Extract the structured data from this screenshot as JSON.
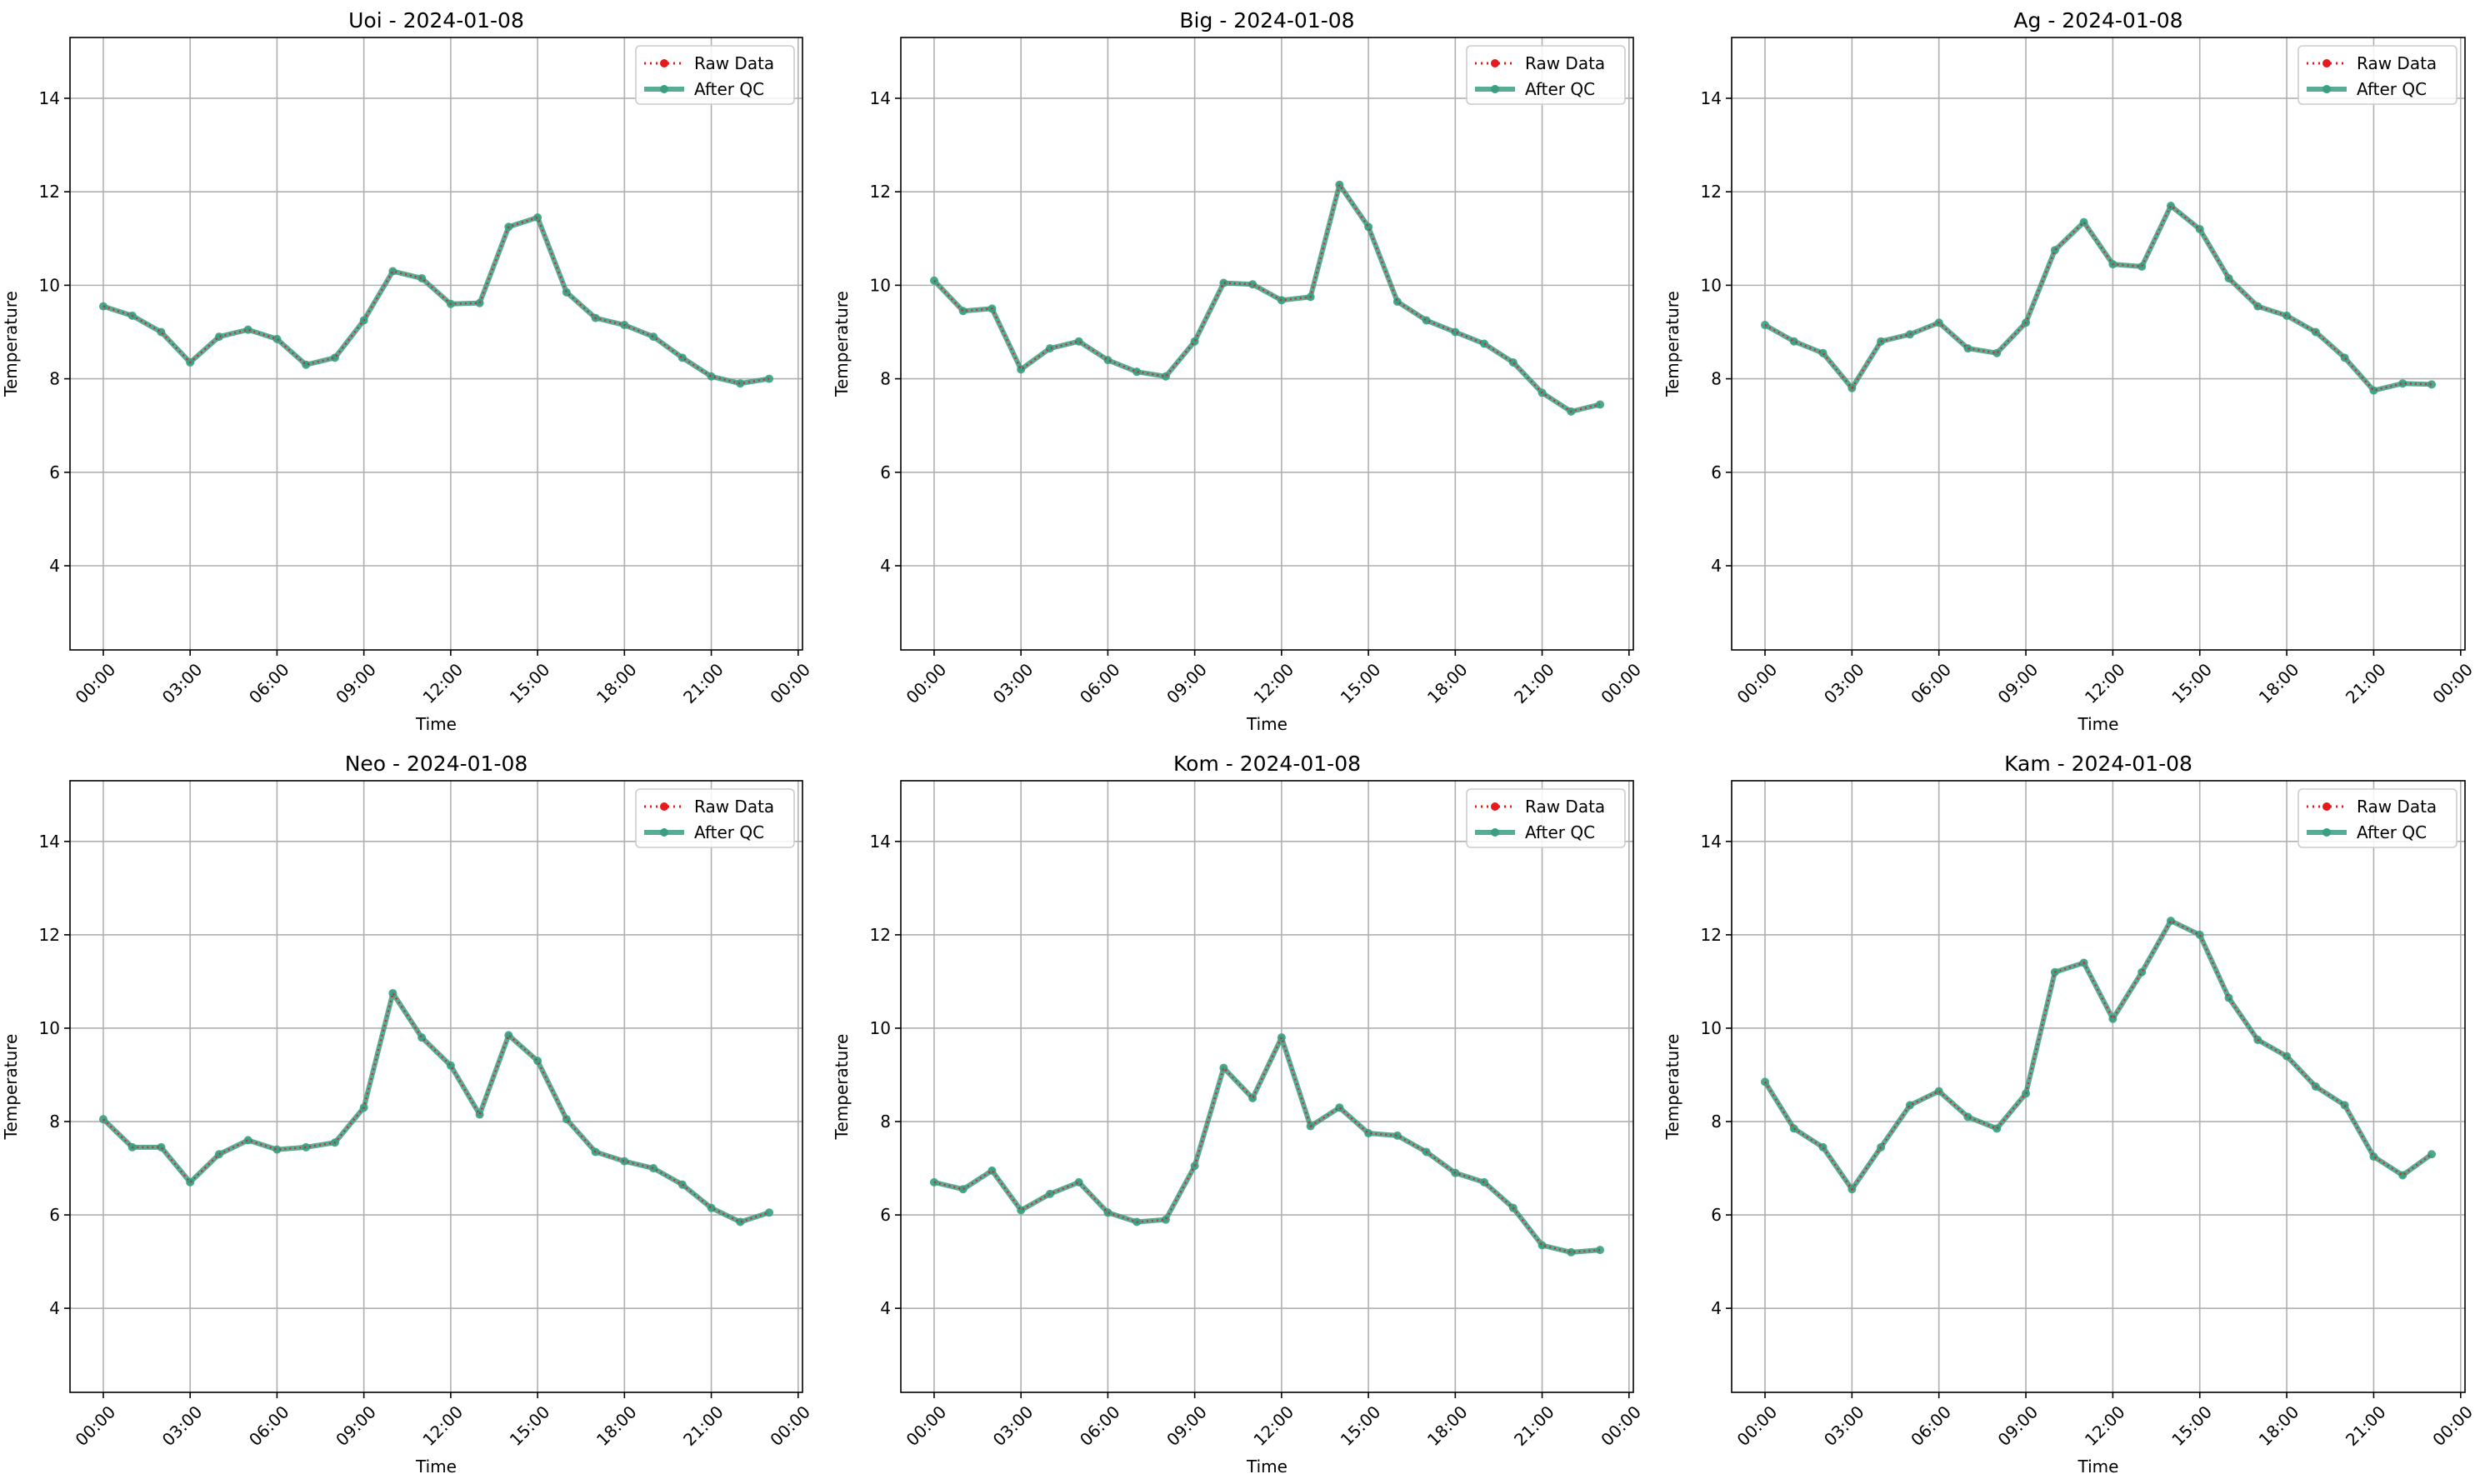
{
  "chart_data": [
    {
      "type": "line",
      "title": "Uoi - 2024-01-08",
      "xlabel": "Time",
      "ylabel": "Temperature",
      "ylim": [
        2.2,
        15.3
      ],
      "yticks": [
        4,
        6,
        8,
        10,
        12,
        14
      ],
      "xticks": [
        "00:00",
        "03:00",
        "06:00",
        "09:00",
        "12:00",
        "15:00",
        "18:00",
        "21:00",
        "00:00"
      ],
      "grid": true,
      "legend_position": "top-right",
      "x_hours": [
        0,
        1,
        2,
        3,
        4,
        5,
        6,
        7,
        8,
        9,
        10,
        11,
        12,
        13,
        14,
        15,
        16,
        17,
        18,
        19,
        20,
        21,
        22,
        23
      ],
      "series": [
        {
          "name": "Raw Data",
          "color": "#e41a1c",
          "style": "dotted",
          "values": [
            9.55,
            9.35,
            9.0,
            8.35,
            8.9,
            9.05,
            8.85,
            8.3,
            8.45,
            9.25,
            10.3,
            10.15,
            9.6,
            9.62,
            11.25,
            11.45,
            9.85,
            9.3,
            9.15,
            8.9,
            8.45,
            8.05,
            7.9,
            8.0
          ]
        },
        {
          "name": "After QC",
          "color": "#3a9e82",
          "style": "solid",
          "values": [
            9.55,
            9.35,
            9.0,
            8.35,
            8.9,
            9.05,
            8.85,
            8.3,
            8.45,
            9.25,
            10.3,
            10.15,
            9.6,
            9.62,
            11.25,
            11.45,
            9.85,
            9.3,
            9.15,
            8.9,
            8.45,
            8.05,
            7.9,
            8.0
          ]
        }
      ]
    },
    {
      "type": "line",
      "title": "Big - 2024-01-08",
      "xlabel": "Time",
      "ylabel": "Temperature",
      "ylim": [
        2.2,
        15.3
      ],
      "yticks": [
        4,
        6,
        8,
        10,
        12,
        14
      ],
      "xticks": [
        "00:00",
        "03:00",
        "06:00",
        "09:00",
        "12:00",
        "15:00",
        "18:00",
        "21:00",
        "00:00"
      ],
      "grid": true,
      "legend_position": "top-right",
      "x_hours": [
        0,
        1,
        2,
        3,
        4,
        5,
        6,
        7,
        8,
        9,
        10,
        11,
        12,
        13,
        14,
        15,
        16,
        17,
        18,
        19,
        20,
        21,
        22,
        23
      ],
      "series": [
        {
          "name": "Raw Data",
          "color": "#e41a1c",
          "style": "dotted",
          "values": [
            10.1,
            9.45,
            9.5,
            8.2,
            8.65,
            8.8,
            8.4,
            8.15,
            8.05,
            8.8,
            10.05,
            10.02,
            9.68,
            9.75,
            12.15,
            11.25,
            9.65,
            9.25,
            9.0,
            8.75,
            8.35,
            7.7,
            7.3,
            7.45
          ]
        },
        {
          "name": "After QC",
          "color": "#3a9e82",
          "style": "solid",
          "values": [
            10.1,
            9.45,
            9.5,
            8.2,
            8.65,
            8.8,
            8.4,
            8.15,
            8.05,
            8.8,
            10.05,
            10.02,
            9.68,
            9.75,
            12.15,
            11.25,
            9.65,
            9.25,
            9.0,
            8.75,
            8.35,
            7.7,
            7.3,
            7.45
          ]
        }
      ]
    },
    {
      "type": "line",
      "title": "Ag - 2024-01-08",
      "xlabel": "Time",
      "ylabel": "Temperature",
      "ylim": [
        2.2,
        15.3
      ],
      "yticks": [
        4,
        6,
        8,
        10,
        12,
        14
      ],
      "xticks": [
        "00:00",
        "03:00",
        "06:00",
        "09:00",
        "12:00",
        "15:00",
        "18:00",
        "21:00",
        "00:00"
      ],
      "grid": true,
      "legend_position": "top-right",
      "x_hours": [
        0,
        1,
        2,
        3,
        4,
        5,
        6,
        7,
        8,
        9,
        10,
        11,
        12,
        13,
        14,
        15,
        16,
        17,
        18,
        19,
        20,
        21,
        22,
        23
      ],
      "series": [
        {
          "name": "Raw Data",
          "color": "#e41a1c",
          "style": "dotted",
          "values": [
            9.15,
            8.8,
            8.55,
            7.8,
            8.8,
            8.95,
            9.2,
            8.65,
            8.55,
            9.2,
            10.75,
            11.35,
            10.45,
            10.4,
            11.7,
            11.2,
            10.15,
            9.55,
            9.35,
            9.0,
            8.45,
            7.75,
            7.9,
            7.88
          ]
        },
        {
          "name": "After QC",
          "color": "#3a9e82",
          "style": "solid",
          "values": [
            9.15,
            8.8,
            8.55,
            7.8,
            8.8,
            8.95,
            9.2,
            8.65,
            8.55,
            9.2,
            10.75,
            11.35,
            10.45,
            10.4,
            11.7,
            11.2,
            10.15,
            9.55,
            9.35,
            9.0,
            8.45,
            7.75,
            7.9,
            7.88
          ]
        }
      ]
    },
    {
      "type": "line",
      "title": "Neo - 2024-01-08",
      "xlabel": "Time",
      "ylabel": "Temperature",
      "ylim": [
        2.2,
        15.3
      ],
      "yticks": [
        4,
        6,
        8,
        10,
        12,
        14
      ],
      "xticks": [
        "00:00",
        "03:00",
        "06:00",
        "09:00",
        "12:00",
        "15:00",
        "18:00",
        "21:00",
        "00:00"
      ],
      "grid": true,
      "legend_position": "top-right",
      "x_hours": [
        0,
        1,
        2,
        3,
        4,
        5,
        6,
        7,
        8,
        9,
        10,
        11,
        12,
        13,
        14,
        15,
        16,
        17,
        18,
        19,
        20,
        21,
        22,
        23
      ],
      "series": [
        {
          "name": "Raw Data",
          "color": "#e41a1c",
          "style": "dotted",
          "values": [
            8.05,
            7.45,
            7.45,
            6.7,
            7.3,
            7.6,
            7.4,
            7.45,
            7.55,
            8.3,
            10.75,
            9.8,
            9.2,
            8.15,
            9.85,
            9.3,
            8.05,
            7.35,
            7.15,
            7.0,
            6.65,
            6.15,
            5.85,
            6.05
          ]
        },
        {
          "name": "After QC",
          "color": "#3a9e82",
          "style": "solid",
          "values": [
            8.05,
            7.45,
            7.45,
            6.7,
            7.3,
            7.6,
            7.4,
            7.45,
            7.55,
            8.3,
            10.75,
            9.8,
            9.2,
            8.15,
            9.85,
            9.3,
            8.05,
            7.35,
            7.15,
            7.0,
            6.65,
            6.15,
            5.85,
            6.05
          ]
        }
      ]
    },
    {
      "type": "line",
      "title": "Kom - 2024-01-08",
      "xlabel": "Time",
      "ylabel": "Temperature",
      "ylim": [
        2.2,
        15.3
      ],
      "yticks": [
        4,
        6,
        8,
        10,
        12,
        14
      ],
      "xticks": [
        "00:00",
        "03:00",
        "06:00",
        "09:00",
        "12:00",
        "15:00",
        "18:00",
        "21:00",
        "00:00"
      ],
      "grid": true,
      "legend_position": "top-right",
      "x_hours": [
        0,
        1,
        2,
        3,
        4,
        5,
        6,
        7,
        8,
        9,
        10,
        11,
        12,
        13,
        14,
        15,
        16,
        17,
        18,
        19,
        20,
        21,
        22,
        23
      ],
      "series": [
        {
          "name": "Raw Data",
          "color": "#e41a1c",
          "style": "dotted",
          "values": [
            6.7,
            6.55,
            6.95,
            6.1,
            6.45,
            6.7,
            6.05,
            5.85,
            5.9,
            7.05,
            9.15,
            8.5,
            9.8,
            7.9,
            8.3,
            7.75,
            7.7,
            7.35,
            6.9,
            6.7,
            6.15,
            5.35,
            5.2,
            5.25
          ]
        },
        {
          "name": "After QC",
          "color": "#3a9e82",
          "style": "solid",
          "values": [
            6.7,
            6.55,
            6.95,
            6.1,
            6.45,
            6.7,
            6.05,
            5.85,
            5.9,
            7.05,
            9.15,
            8.5,
            9.8,
            7.9,
            8.3,
            7.75,
            7.7,
            7.35,
            6.9,
            6.7,
            6.15,
            5.35,
            5.2,
            5.25
          ]
        }
      ]
    },
    {
      "type": "line",
      "title": "Kam - 2024-01-08",
      "xlabel": "Time",
      "ylabel": "Temperature",
      "ylim": [
        2.2,
        15.3
      ],
      "yticks": [
        4,
        6,
        8,
        10,
        12,
        14
      ],
      "xticks": [
        "00:00",
        "03:00",
        "06:00",
        "09:00",
        "12:00",
        "15:00",
        "18:00",
        "21:00",
        "00:00"
      ],
      "grid": true,
      "legend_position": "top-right",
      "x_hours": [
        0,
        1,
        2,
        3,
        4,
        5,
        6,
        7,
        8,
        9,
        10,
        11,
        12,
        13,
        14,
        15,
        16,
        17,
        18,
        19,
        20,
        21,
        22,
        23
      ],
      "series": [
        {
          "name": "Raw Data",
          "color": "#e41a1c",
          "style": "dotted",
          "values": [
            8.85,
            7.85,
            7.45,
            6.55,
            7.45,
            8.35,
            8.65,
            8.1,
            7.85,
            8.6,
            11.2,
            11.4,
            10.2,
            11.2,
            12.3,
            12.0,
            10.65,
            9.75,
            9.4,
            8.75,
            8.35,
            7.25,
            6.85,
            7.3
          ]
        },
        {
          "name": "After QC",
          "color": "#3a9e82",
          "style": "solid",
          "values": [
            8.85,
            7.85,
            7.45,
            6.55,
            7.45,
            8.35,
            8.65,
            8.1,
            7.85,
            8.6,
            11.2,
            11.4,
            10.2,
            11.2,
            12.3,
            12.0,
            10.65,
            9.75,
            9.4,
            8.75,
            8.35,
            7.25,
            6.85,
            7.3
          ]
        }
      ]
    }
  ]
}
